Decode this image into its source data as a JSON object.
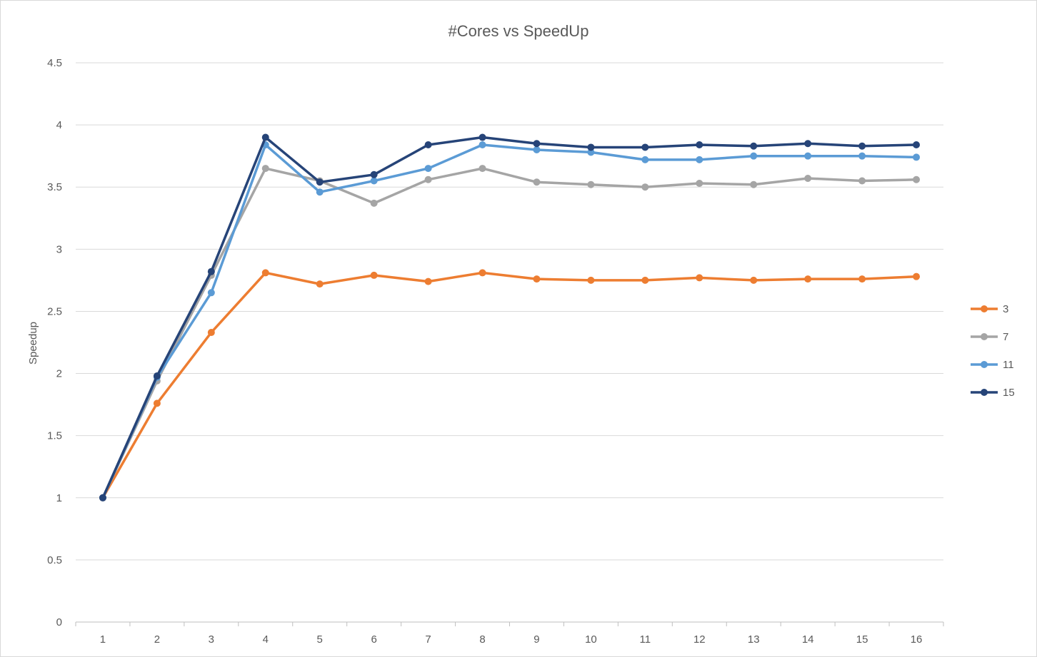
{
  "chart_data": {
    "type": "line",
    "title": "#Cores vs SpeedUp",
    "xlabel": "",
    "ylabel": "Speedup",
    "categories": [
      "1",
      "2",
      "3",
      "4",
      "5",
      "6",
      "7",
      "8",
      "9",
      "10",
      "11",
      "12",
      "13",
      "14",
      "15",
      "16"
    ],
    "ylim": [
      0,
      4.5
    ],
    "yticks": [
      "0",
      "0.5",
      "1",
      "1.5",
      "2",
      "2.5",
      "3",
      "3.5",
      "4",
      "4.5"
    ],
    "ytick_values": [
      0,
      0.5,
      1,
      1.5,
      2,
      2.5,
      3,
      3.5,
      4,
      4.5
    ],
    "grid": true,
    "legend_position": "right",
    "series": [
      {
        "name": "3",
        "color": "#ED7D31",
        "values": [
          1.0,
          1.76,
          2.33,
          2.81,
          2.72,
          2.79,
          2.74,
          2.81,
          2.76,
          2.75,
          2.75,
          2.77,
          2.75,
          2.76,
          2.76,
          2.78
        ]
      },
      {
        "name": "7",
        "color": "#A5A5A5",
        "values": [
          1.0,
          1.94,
          2.79,
          3.65,
          3.55,
          3.37,
          3.56,
          3.65,
          3.54,
          3.52,
          3.5,
          3.53,
          3.52,
          3.57,
          3.55,
          3.56
        ]
      },
      {
        "name": "11",
        "color": "#5B9BD5",
        "values": [
          1.0,
          1.97,
          2.65,
          3.84,
          3.46,
          3.55,
          3.65,
          3.84,
          3.8,
          3.78,
          3.72,
          3.72,
          3.75,
          3.75,
          3.75,
          3.74
        ]
      },
      {
        "name": "15",
        "color": "#264478",
        "values": [
          1.0,
          1.98,
          2.82,
          3.9,
          3.54,
          3.6,
          3.84,
          3.9,
          3.85,
          3.82,
          3.82,
          3.84,
          3.83,
          3.85,
          3.83,
          3.84
        ]
      }
    ]
  }
}
